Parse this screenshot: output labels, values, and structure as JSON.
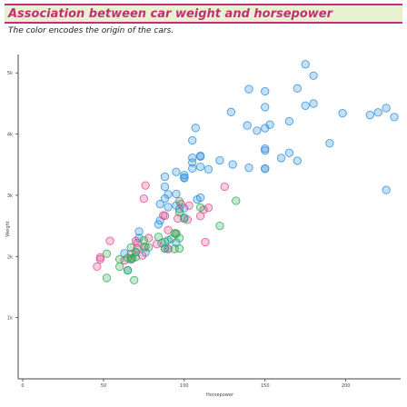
{
  "title": "Association between car weight and horsepower",
  "subtitle": "The color encodes the origin of the cars.",
  "colors": {
    "title": "#c62d76",
    "title_bg": "#e8f1d0",
    "usa": "#2f8fdc",
    "europe": "#e34b91",
    "japan": "#2fae55",
    "axis": "#444444"
  },
  "chart_data": {
    "type": "scatter",
    "title": "Association between car weight and horsepower",
    "subtitle": "The color encodes the origin of the cars.",
    "xlabel": "Horsepower",
    "ylabel": "Weight",
    "xlim": [
      0,
      230
    ],
    "ylim": [
      0,
      5300
    ],
    "x_ticks": [
      0,
      50,
      100,
      150,
      200
    ],
    "x_tick_labels": [
      "0",
      "50",
      "100",
      "150",
      "200"
    ],
    "y_ticks": [
      1000,
      2000,
      3000,
      4000,
      5000
    ],
    "y_tick_labels": [
      "1k",
      "2k",
      "3k",
      "4k",
      "5k"
    ],
    "grid": false,
    "series": [
      {
        "color": "#2f8fdc",
        "points": [
          [
            130,
            3504
          ],
          [
            165,
            3693
          ],
          [
            150,
            3436
          ],
          [
            150,
            3433
          ],
          [
            140,
            3449
          ],
          [
            198,
            4341
          ],
          [
            220,
            4354
          ],
          [
            215,
            4312
          ],
          [
            225,
            4425
          ],
          [
            190,
            3850
          ],
          [
            170,
            3563
          ],
          [
            160,
            3609
          ],
          [
            150,
            3761
          ],
          [
            225,
            3086
          ],
          [
            95,
            2833
          ],
          [
            97,
            2774
          ],
          [
            85,
            2587
          ],
          [
            88,
            2130
          ],
          [
            90,
            2264
          ],
          [
            95,
            2228
          ],
          [
            100,
            2634
          ],
          [
            105,
            3439
          ],
          [
            100,
            3329
          ],
          [
            88,
            3302
          ],
          [
            100,
            3288
          ],
          [
            165,
            4209
          ],
          [
            175,
            4464
          ],
          [
            153,
            4154
          ],
          [
            150,
            4096
          ],
          [
            180,
            4955
          ],
          [
            170,
            4746
          ],
          [
            175,
            5140
          ],
          [
            110,
            2962
          ],
          [
            72,
            2408
          ],
          [
            100,
            3282
          ],
          [
            88,
            3139
          ],
          [
            86,
            2220
          ],
          [
            90,
            2123
          ],
          [
            70,
            2074
          ],
          [
            76,
            2065
          ],
          [
            65,
            1773
          ],
          [
            110,
            3645
          ],
          [
            105,
            3897
          ],
          [
            107,
            4100
          ],
          [
            145,
            4055
          ],
          [
            230,
            4278
          ],
          [
            150,
            4699
          ],
          [
            180,
            4499
          ],
          [
            100,
            2789
          ],
          [
            88,
            2945
          ],
          [
            95,
            3021
          ],
          [
            110,
            3632
          ],
          [
            105,
            3613
          ],
          [
            139,
            4141
          ],
          [
            150,
            3730
          ],
          [
            90,
            2807
          ],
          [
            63,
            2051
          ],
          [
            72,
            2300
          ],
          [
            122,
            3570
          ],
          [
            110,
            3465
          ],
          [
            85,
            2855
          ],
          [
            84,
            2525
          ],
          [
            95,
            3381
          ],
          [
            150,
            4440
          ],
          [
            90,
            3015
          ],
          [
            105,
            3535
          ],
          [
            115,
            3425
          ],
          [
            108,
            2930
          ],
          [
            129,
            4360
          ],
          [
            140,
            4735
          ]
        ]
      },
      {
        "color": "#e34b91",
        "points": [
          [
            46,
            1835
          ],
          [
            87,
            2672
          ],
          [
            90,
            2430
          ],
          [
            95,
            2375
          ],
          [
            113,
            2234
          ],
          [
            90,
            2123
          ],
          [
            70,
            2254
          ],
          [
            48,
            1955
          ],
          [
            54,
            2254
          ],
          [
            71,
            2223
          ],
          [
            102,
            2600
          ],
          [
            75,
            2945
          ],
          [
            67,
            1950
          ],
          [
            110,
            2660
          ],
          [
            78,
            2300
          ],
          [
            83,
            2202
          ],
          [
            67,
            2040
          ],
          [
            76,
            2155
          ],
          [
            96,
            2620
          ],
          [
            103,
            2830
          ],
          [
            125,
            3140
          ],
          [
            115,
            2795
          ],
          [
            98,
            2855
          ],
          [
            88,
            2665
          ],
          [
            63,
            1937
          ],
          [
            74,
            2015
          ],
          [
            112,
            2765
          ],
          [
            76,
            3160
          ],
          [
            71,
            2130
          ],
          [
            48,
            1985
          ]
        ]
      },
      {
        "color": "#2fae55",
        "points": [
          [
            95,
            2372
          ],
          [
            88,
            2130
          ],
          [
            97,
            2130
          ],
          [
            94,
            2379
          ],
          [
            65,
            1773
          ],
          [
            69,
            1613
          ],
          [
            67,
            1965
          ],
          [
            75,
            2155
          ],
          [
            97,
            2300
          ],
          [
            70,
            1990
          ],
          [
            52,
            1649
          ],
          [
            60,
            1834
          ],
          [
            92,
            2288
          ],
          [
            122,
            2500
          ],
          [
            60,
            1955
          ],
          [
            70,
            2070
          ],
          [
            94,
            2124
          ],
          [
            68,
            1970
          ],
          [
            52,
            2045
          ],
          [
            97,
            2900
          ],
          [
            110,
            2800
          ],
          [
            75,
            2265
          ],
          [
            65,
            1975
          ],
          [
            78,
            2150
          ],
          [
            84,
            2320
          ],
          [
            67,
            2145
          ],
          [
            97,
            2720
          ],
          [
            88,
            2240
          ],
          [
            132,
            2910
          ],
          [
            100,
            2615
          ]
        ]
      }
    ]
  }
}
